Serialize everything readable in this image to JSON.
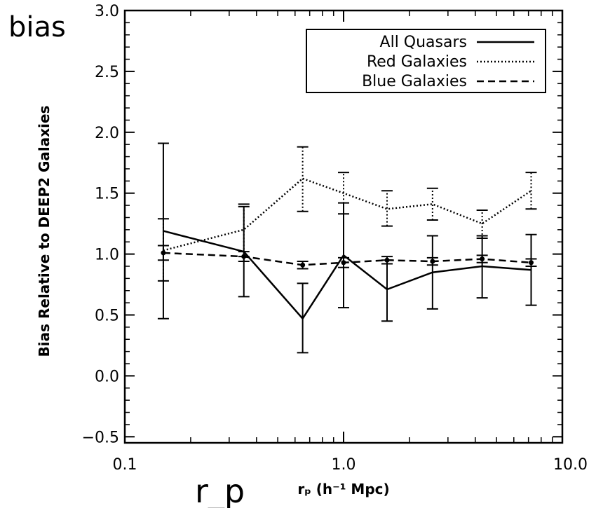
{
  "overlay": {
    "top_left_label": "bias",
    "bottom_label": "r_p"
  },
  "chart_data": {
    "type": "line",
    "xlabel": "rₚ (h⁻¹ Mpc)",
    "ylabel": "Bias Relative to DEEP2 Galaxies",
    "xscale": "log",
    "xlim": [
      0.1,
      10.0
    ],
    "ylim": [
      -0.55,
      3.0
    ],
    "xticks": [
      0.1,
      1.0,
      10.0
    ],
    "xtick_labels": [
      "0.1",
      "1.0",
      "10.0"
    ],
    "yticks": [
      -0.5,
      0.0,
      0.5,
      1.0,
      1.5,
      2.0,
      2.5,
      3.0
    ],
    "ytick_labels": [
      "−0.5",
      "0.0",
      "0.5",
      "1.0",
      "1.5",
      "2.0",
      "2.5",
      "3.0"
    ],
    "legend_position": "top-right",
    "series": [
      {
        "name": "All Quasars",
        "style": "solid",
        "x": [
          0.15,
          0.35,
          0.65,
          1.0,
          1.58,
          2.55,
          4.3,
          7.2
        ],
        "y": [
          1.19,
          1.02,
          0.47,
          0.99,
          0.71,
          0.85,
          0.9,
          0.87
        ],
        "err_low": [
          0.47,
          0.65,
          0.19,
          0.56,
          0.45,
          0.55,
          0.64,
          0.58
        ],
        "err_high": [
          1.91,
          1.39,
          0.76,
          1.42,
          0.95,
          1.15,
          1.15,
          1.16
        ]
      },
      {
        "name": "Red Galaxies",
        "style": "dotted",
        "x": [
          0.15,
          0.35,
          0.65,
          1.0,
          1.58,
          2.55,
          4.3,
          7.2
        ],
        "y": [
          1.03,
          1.2,
          1.62,
          1.5,
          1.37,
          1.41,
          1.25,
          1.52
        ],
        "err_low": [
          0.78,
          0.98,
          1.35,
          1.33,
          1.23,
          1.28,
          1.13,
          1.37
        ],
        "err_high": [
          1.29,
          1.41,
          1.88,
          1.67,
          1.52,
          1.54,
          1.36,
          1.67
        ]
      },
      {
        "name": "Blue Galaxies",
        "style": "dashed",
        "x": [
          0.15,
          0.35,
          0.65,
          1.0,
          1.58,
          2.55,
          4.3,
          7.2
        ],
        "y": [
          1.01,
          0.98,
          0.91,
          0.93,
          0.95,
          0.94,
          0.96,
          0.93
        ],
        "err_low": [
          0.95,
          0.94,
          0.88,
          0.89,
          0.92,
          0.91,
          0.93,
          0.9
        ],
        "err_high": [
          1.07,
          1.02,
          0.94,
          0.97,
          0.98,
          0.97,
          0.99,
          0.96
        ]
      }
    ]
  }
}
